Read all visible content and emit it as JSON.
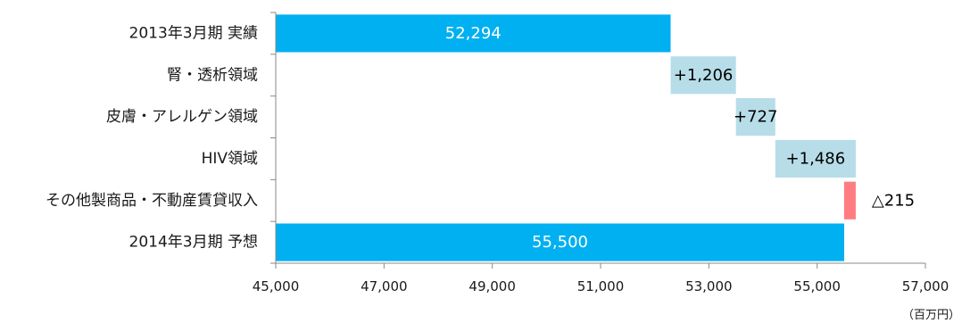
{
  "chart_data": {
    "type": "bar",
    "orientation": "horizontal",
    "variant": "waterfall",
    "title": "",
    "xlabel": "",
    "ylabel": "",
    "unit": "（百万円）",
    "xlim": [
      45000,
      57000
    ],
    "x_ticks": [
      45000,
      47000,
      49000,
      51000,
      53000,
      55000,
      57000
    ],
    "x_tick_labels": [
      "45,000",
      "47,000",
      "49,000",
      "51,000",
      "53,000",
      "55,000",
      "57,000"
    ],
    "grid": false,
    "legend": "none",
    "categories": [
      "2013年3月期  実績",
      "腎・透析領域",
      "皮膚・アレルゲン領域",
      "HIV領域",
      "その他製商品・不動産賃貸収入",
      "2014年3月期  予想"
    ],
    "bars": [
      {
        "category": "2013年3月期  実績",
        "kind": "total",
        "start": 45000,
        "end": 52294,
        "label": "52,294",
        "color": "#00b0f0",
        "label_color": "#ffffff",
        "label_position": "inside"
      },
      {
        "category": "腎・透析領域",
        "kind": "increase",
        "start": 52294,
        "end": 53500,
        "label": "+1,206",
        "color": "#b7dde8",
        "label_color": "#000000",
        "label_position": "inside"
      },
      {
        "category": "皮膚・アレルゲン領域",
        "kind": "increase",
        "start": 53500,
        "end": 54227,
        "label": "+727",
        "color": "#b7dde8",
        "label_color": "#000000",
        "label_position": "inside"
      },
      {
        "category": "HIV領域",
        "kind": "increase",
        "start": 54227,
        "end": 55713,
        "label": "+1,486",
        "color": "#b7dde8",
        "label_color": "#000000",
        "label_position": "inside"
      },
      {
        "category": "その他製商品・不動産賃貸収入",
        "kind": "decrease",
        "start": 55713,
        "end": 55498,
        "label": "△215",
        "color": "#ff7c80",
        "label_color": "#000000",
        "label_position": "outside"
      },
      {
        "category": "2014年3月期  予想",
        "kind": "total",
        "start": 45000,
        "end": 55500,
        "label": "55,500",
        "color": "#00b0f0",
        "label_color": "#ffffff",
        "label_position": "inside"
      }
    ],
    "axis_color": "#888888"
  }
}
